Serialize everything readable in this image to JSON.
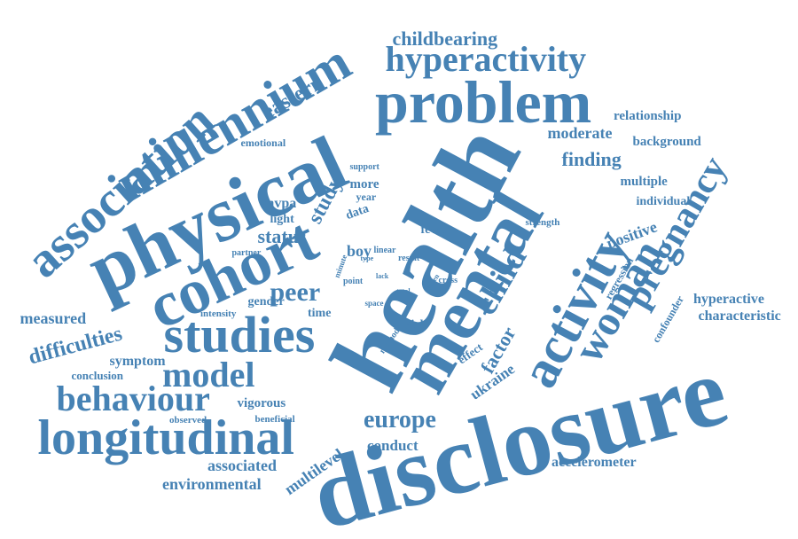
{
  "color": "#4682b4",
  "words": [
    "disclosure",
    "health",
    "mental",
    "physical",
    "cohort",
    "problem",
    "longitudinal",
    "millennium",
    "association",
    "studies",
    "activity",
    "pregnancy",
    "woman",
    "hyperactivity",
    "behaviour",
    "child",
    "model",
    "peer",
    "europe",
    "eastern",
    "childbearing",
    "status",
    "difficulties",
    "factor",
    "finding",
    "moderate",
    "relationship",
    "background",
    "emotional",
    "support",
    "study",
    "more",
    "year",
    "mvpa",
    "light",
    "data",
    "multiple",
    "individual",
    "positive",
    "strength",
    "boy",
    "fewer",
    "linear",
    "result",
    "type",
    "partner",
    "minute",
    "point",
    "lack",
    "green",
    "cross",
    "total",
    "space",
    "regression",
    "confounder",
    "hyperactive",
    "characteristic",
    "measured",
    "gender",
    "intensity",
    "time",
    "girl",
    "method",
    "effect",
    "ukraine",
    "symptom",
    "conclusion",
    "vigorous",
    "observed",
    "beneficial",
    "conduct",
    "associated",
    "environmental",
    "multilevel",
    "accelerometer"
  ]
}
